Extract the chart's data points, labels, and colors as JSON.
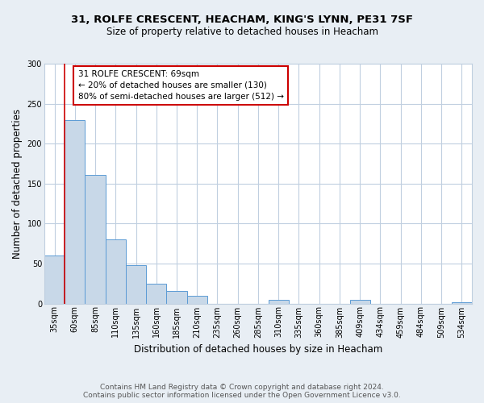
{
  "title_line1": "31, ROLFE CRESCENT, HEACHAM, KING'S LYNN, PE31 7SF",
  "title_line2": "Size of property relative to detached houses in Heacham",
  "xlabel": "Distribution of detached houses by size in Heacham",
  "ylabel": "Number of detached properties",
  "bin_labels": [
    "35sqm",
    "60sqm",
    "85sqm",
    "110sqm",
    "135sqm",
    "160sqm",
    "185sqm",
    "210sqm",
    "235sqm",
    "260sqm",
    "285sqm",
    "310sqm",
    "335sqm",
    "360sqm",
    "385sqm",
    "409sqm",
    "434sqm",
    "459sqm",
    "484sqm",
    "509sqm",
    "534sqm"
  ],
  "bin_values": [
    60,
    229,
    161,
    80,
    48,
    25,
    16,
    10,
    0,
    0,
    0,
    5,
    0,
    0,
    0,
    5,
    0,
    0,
    0,
    0,
    2
  ],
  "bar_color": "#c8d8e8",
  "bar_edge_color": "#5b9bd5",
  "vline_x_index": 1,
  "vline_color": "#cc0000",
  "annotation_text": "31 ROLFE CRESCENT: 69sqm\n← 20% of detached houses are smaller (130)\n80% of semi-detached houses are larger (512) →",
  "annotation_box_color": "#ffffff",
  "annotation_box_edge_color": "#cc0000",
  "ylim": [
    0,
    300
  ],
  "yticks": [
    0,
    50,
    100,
    150,
    200,
    250,
    300
  ],
  "footer_line1": "Contains HM Land Registry data © Crown copyright and database right 2024.",
  "footer_line2": "Contains public sector information licensed under the Open Government Licence v3.0.",
  "background_color": "#e8eef4",
  "plot_background_color": "#ffffff",
  "grid_color": "#c0cfe0",
  "title_fontsize": 9.5,
  "subtitle_fontsize": 8.5,
  "axis_label_fontsize": 8.5,
  "tick_fontsize": 7,
  "annotation_fontsize": 7.5,
  "footer_fontsize": 6.5
}
